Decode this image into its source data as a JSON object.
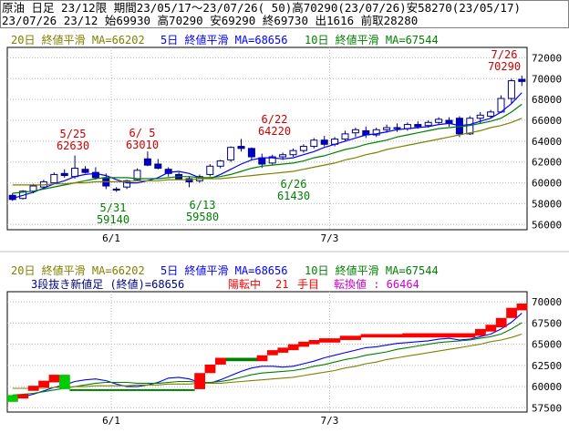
{
  "header": {
    "line1": "原油 日足 23/12限 期間23/05/17～23/07/26( 50)高70290(23/07/26)安58270(23/05/17)",
    "line2": "23/07/26 23/12 始69930 高70290 安69290 終69730 出1616 前取28280"
  },
  "upper": {
    "legend": {
      "ma20": "20日 終値平滑 MA=66202",
      "ma5": "5日 終値平滑 MA=68656",
      "ma10": "10日 終値平滑 MA=67544"
    },
    "annotations": [
      {
        "date": "5/25",
        "price": "62630",
        "kind": "high"
      },
      {
        "date": "6/ 5",
        "price": "63010",
        "kind": "high"
      },
      {
        "date": "6/22",
        "price": "64220",
        "kind": "high"
      },
      {
        "date": "7/26",
        "price": "70290",
        "kind": "high"
      },
      {
        "date": "5/31",
        "price": "59140",
        "kind": "low"
      },
      {
        "date": "6/13",
        "price": "59580",
        "kind": "low"
      },
      {
        "date": "6/26",
        "price": "61430",
        "kind": "low"
      }
    ]
  },
  "lower": {
    "legend": {
      "ma20": "20日 終値平滑 MA=66202",
      "ma5": "5日 終値平滑 MA=68656",
      "ma10": "10日 終値平滑 MA=67544"
    },
    "status": {
      "prefix": "3段抜き新値足 (終値)=68656",
      "state": "陽転中",
      "count": "21",
      "count_unit": "手目",
      "reversal": "転換値 : 66464"
    }
  },
  "colors": {
    "up_body": "#ffffff",
    "down_body": "#0000cc",
    "candle_outline": "#000080",
    "ma5": "#0000ff",
    "ma10": "#008000",
    "ma20": "#808000",
    "high_label": "#cc0000",
    "low_label": "#008000",
    "brick_up": "#ff0000",
    "brick_down": "#00cc00",
    "brick_flat": "#008000",
    "status_red": "#ff0000",
    "status_magenta": "#cc00cc",
    "header_line2": "#000080"
  },
  "chart_data": [
    {
      "type": "candlestick",
      "title": "原油 日足 23/12限",
      "y_ticks": [
        56000,
        58000,
        60000,
        62000,
        64000,
        66000,
        68000,
        70000,
        72000
      ],
      "ylim": [
        55500,
        73000
      ],
      "x_ticks": [
        {
          "label": "6/1",
          "index": 10
        },
        {
          "label": "7/3",
          "index": 31
        }
      ],
      "grid": true,
      "candles": [
        {
          "o": 58800,
          "h": 59000,
          "l": 58270,
          "c": 58400
        },
        {
          "o": 58500,
          "h": 59300,
          "l": 58400,
          "c": 59200
        },
        {
          "o": 59200,
          "h": 59900,
          "l": 59000,
          "c": 59700
        },
        {
          "o": 59600,
          "h": 60300,
          "l": 59400,
          "c": 60100
        },
        {
          "o": 60000,
          "h": 61000,
          "l": 59900,
          "c": 60800
        },
        {
          "o": 60900,
          "h": 61300,
          "l": 60500,
          "c": 60700
        },
        {
          "o": 60600,
          "h": 62630,
          "l": 60400,
          "c": 61400
        },
        {
          "o": 61300,
          "h": 61600,
          "l": 60900,
          "c": 61000
        },
        {
          "o": 61000,
          "h": 61500,
          "l": 60300,
          "c": 60500
        },
        {
          "o": 60500,
          "h": 60900,
          "l": 59400,
          "c": 59700
        },
        {
          "o": 59400,
          "h": 59600,
          "l": 59140,
          "c": 59300
        },
        {
          "o": 59600,
          "h": 60300,
          "l": 59400,
          "c": 60200
        },
        {
          "o": 60300,
          "h": 61400,
          "l": 60200,
          "c": 61200
        },
        {
          "o": 62300,
          "h": 63010,
          "l": 61600,
          "c": 61700
        },
        {
          "o": 61800,
          "h": 62300,
          "l": 61300,
          "c": 61400
        },
        {
          "o": 61300,
          "h": 61500,
          "l": 60600,
          "c": 60900
        },
        {
          "o": 60800,
          "h": 61000,
          "l": 60300,
          "c": 60400
        },
        {
          "o": 60400,
          "h": 60600,
          "l": 59580,
          "c": 60100
        },
        {
          "o": 60200,
          "h": 60800,
          "l": 60000,
          "c": 60600
        },
        {
          "o": 60800,
          "h": 61800,
          "l": 60600,
          "c": 61600
        },
        {
          "o": 61600,
          "h": 62200,
          "l": 61400,
          "c": 62100
        },
        {
          "o": 62200,
          "h": 63500,
          "l": 62000,
          "c": 63400
        },
        {
          "o": 63500,
          "h": 64220,
          "l": 63000,
          "c": 63300
        },
        {
          "o": 63300,
          "h": 63400,
          "l": 62200,
          "c": 62500
        },
        {
          "o": 62400,
          "h": 62800,
          "l": 61430,
          "c": 61800
        },
        {
          "o": 61900,
          "h": 62700,
          "l": 61700,
          "c": 62500
        },
        {
          "o": 62500,
          "h": 62900,
          "l": 62200,
          "c": 62700
        },
        {
          "o": 62700,
          "h": 63300,
          "l": 62500,
          "c": 63100
        },
        {
          "o": 63100,
          "h": 63700,
          "l": 62900,
          "c": 63500
        },
        {
          "o": 63500,
          "h": 64300,
          "l": 63300,
          "c": 64100
        },
        {
          "o": 64100,
          "h": 64500,
          "l": 63500,
          "c": 63700
        },
        {
          "o": 63700,
          "h": 64400,
          "l": 63500,
          "c": 64200
        },
        {
          "o": 64200,
          "h": 65000,
          "l": 64000,
          "c": 64700
        },
        {
          "o": 64800,
          "h": 65300,
          "l": 64400,
          "c": 65100
        },
        {
          "o": 65000,
          "h": 65400,
          "l": 64300,
          "c": 64600
        },
        {
          "o": 64600,
          "h": 65300,
          "l": 64400,
          "c": 65100
        },
        {
          "o": 65100,
          "h": 65600,
          "l": 64800,
          "c": 65300
        },
        {
          "o": 65300,
          "h": 65700,
          "l": 64900,
          "c": 65200
        },
        {
          "o": 65200,
          "h": 65800,
          "l": 65000,
          "c": 65600
        },
        {
          "o": 65600,
          "h": 65900,
          "l": 65200,
          "c": 65400
        },
        {
          "o": 65500,
          "h": 66000,
          "l": 65300,
          "c": 65800
        },
        {
          "o": 65800,
          "h": 66300,
          "l": 65600,
          "c": 66100
        },
        {
          "o": 66000,
          "h": 66300,
          "l": 65400,
          "c": 65700
        },
        {
          "o": 66200,
          "h": 66400,
          "l": 64400,
          "c": 64700
        },
        {
          "o": 64700,
          "h": 66400,
          "l": 64600,
          "c": 66200
        },
        {
          "o": 66200,
          "h": 66800,
          "l": 65700,
          "c": 66500
        },
        {
          "o": 66400,
          "h": 67000,
          "l": 66200,
          "c": 66800
        },
        {
          "o": 66800,
          "h": 68400,
          "l": 66700,
          "c": 68100
        },
        {
          "o": 68100,
          "h": 70000,
          "l": 67600,
          "c": 69800
        },
        {
          "o": 69930,
          "h": 70290,
          "l": 69290,
          "c": 69730
        }
      ],
      "series": [
        {
          "name": "5日",
          "values": [
            58500,
            58800,
            59100,
            59500,
            59900,
            60200,
            60600,
            60800,
            60900,
            60700,
            60300,
            60000,
            60000,
            60200,
            60500,
            61000,
            61100,
            60900,
            60500,
            60400,
            60800,
            61300,
            61800,
            62200,
            62400,
            62400,
            62300,
            62400,
            62700,
            63000,
            63400,
            63700,
            64000,
            64300,
            64600,
            64700,
            64900,
            65100,
            65200,
            65300,
            65400,
            65600,
            65700,
            65500,
            65600,
            65900,
            66200,
            66800,
            67600,
            68656
          ]
        },
        {
          "name": "10日",
          "values": [
            59000,
            59100,
            59200,
            59400,
            59600,
            59800,
            60000,
            60200,
            60400,
            60500,
            60500,
            60500,
            60400,
            60400,
            60400,
            60500,
            60600,
            60600,
            60500,
            60500,
            60600,
            60800,
            61100,
            61400,
            61600,
            61700,
            61800,
            61900,
            62100,
            62400,
            62600,
            62900,
            63200,
            63400,
            63700,
            63900,
            64100,
            64400,
            64600,
            64800,
            65000,
            65200,
            65300,
            65400,
            65500,
            65700,
            65900,
            66200,
            66800,
            67544
          ]
        },
        {
          "name": "20日",
          "values": [
            59800,
            59800,
            59800,
            59800,
            59900,
            59900,
            60000,
            60000,
            60100,
            60100,
            60100,
            60100,
            60200,
            60200,
            60200,
            60300,
            60300,
            60300,
            60400,
            60400,
            60400,
            60500,
            60600,
            60700,
            60800,
            60900,
            61000,
            61100,
            61300,
            61500,
            61700,
            61900,
            62200,
            62400,
            62700,
            62900,
            63200,
            63400,
            63600,
            63800,
            64000,
            64200,
            64400,
            64600,
            64800,
            65000,
            65300,
            65500,
            65800,
            66202
          ]
        }
      ]
    },
    {
      "type": "bar",
      "title": "3段抜き新値足 (終値)",
      "y_ticks": [
        57500,
        60000,
        62500,
        65000,
        67500,
        70000
      ],
      "ylim": [
        57000,
        71200
      ],
      "x_ticks": [
        {
          "label": "6/1",
          "index": 10
        },
        {
          "label": "7/3",
          "index": 31
        }
      ],
      "grid": true,
      "bricks": [
        {
          "from": 59000,
          "to": 58200,
          "dir": "down"
        },
        {
          "from": 58600,
          "to": 59100,
          "dir": "up"
        },
        {
          "from": 59500,
          "to": 60100,
          "dir": "up"
        },
        {
          "from": 59900,
          "to": 60700,
          "dir": "up"
        },
        {
          "from": 60500,
          "to": 61400,
          "dir": "up"
        },
        {
          "from": 61400,
          "to": 59700,
          "dir": "down"
        },
        {
          "from": 59700,
          "to": 59600,
          "dir": "flat"
        },
        {
          "from": 59700,
          "to": 59600,
          "dir": "flat"
        },
        {
          "from": 59700,
          "to": 59600,
          "dir": "flat"
        },
        {
          "from": 59700,
          "to": 59600,
          "dir": "flat"
        },
        {
          "from": 59700,
          "to": 59600,
          "dir": "flat"
        },
        {
          "from": 59700,
          "to": 59600,
          "dir": "flat"
        },
        {
          "from": 59700,
          "to": 59600,
          "dir": "flat"
        },
        {
          "from": 59700,
          "to": 59600,
          "dir": "flat"
        },
        {
          "from": 59700,
          "to": 59600,
          "dir": "flat"
        },
        {
          "from": 59700,
          "to": 59600,
          "dir": "flat"
        },
        {
          "from": 59700,
          "to": 59600,
          "dir": "flat"
        },
        {
          "from": 59700,
          "to": 59600,
          "dir": "flat"
        },
        {
          "from": 59700,
          "to": 61600,
          "dir": "up"
        },
        {
          "from": 61600,
          "to": 62600,
          "dir": "up"
        },
        {
          "from": 62600,
          "to": 63400,
          "dir": "up"
        },
        {
          "from": 63400,
          "to": 63000,
          "dir": "flat"
        },
        {
          "from": 63400,
          "to": 63000,
          "dir": "flat"
        },
        {
          "from": 63400,
          "to": 63000,
          "dir": "flat"
        },
        {
          "from": 63000,
          "to": 63700,
          "dir": "up"
        },
        {
          "from": 63700,
          "to": 64300,
          "dir": "up"
        },
        {
          "from": 64000,
          "to": 64600,
          "dir": "up"
        },
        {
          "from": 64300,
          "to": 65000,
          "dir": "up"
        },
        {
          "from": 64700,
          "to": 65300,
          "dir": "up"
        },
        {
          "from": 65000,
          "to": 65500,
          "dir": "up"
        },
        {
          "from": 65200,
          "to": 65700,
          "dir": "up"
        },
        {
          "from": 65200,
          "to": 65700,
          "dir": "up"
        },
        {
          "from": 65500,
          "to": 66000,
          "dir": "up"
        },
        {
          "from": 65500,
          "to": 66000,
          "dir": "up"
        },
        {
          "from": 65800,
          "to": 66200,
          "dir": "up"
        },
        {
          "from": 65800,
          "to": 66200,
          "dir": "up"
        },
        {
          "from": 65800,
          "to": 66200,
          "dir": "up"
        },
        {
          "from": 65800,
          "to": 66200,
          "dir": "up"
        },
        {
          "from": 65800,
          "to": 66300,
          "dir": "up"
        },
        {
          "from": 65800,
          "to": 66300,
          "dir": "up"
        },
        {
          "from": 65800,
          "to": 66300,
          "dir": "up"
        },
        {
          "from": 65800,
          "to": 66300,
          "dir": "up"
        },
        {
          "from": 65800,
          "to": 66300,
          "dir": "up"
        },
        {
          "from": 65800,
          "to": 66300,
          "dir": "up"
        },
        {
          "from": 65800,
          "to": 66300,
          "dir": "up"
        },
        {
          "from": 66000,
          "to": 66800,
          "dir": "up"
        },
        {
          "from": 66500,
          "to": 67300,
          "dir": "up"
        },
        {
          "from": 67000,
          "to": 68100,
          "dir": "up"
        },
        {
          "from": 68100,
          "to": 69300,
          "dir": "up"
        },
        {
          "from": 69000,
          "to": 69800,
          "dir": "up"
        }
      ],
      "series": [
        {
          "name": "5日",
          "values": [
            58500,
            58800,
            59100,
            59500,
            59900,
            60200,
            60600,
            60800,
            60900,
            60700,
            60300,
            60000,
            60000,
            60200,
            60500,
            61000,
            61100,
            60900,
            60500,
            60400,
            60800,
            61300,
            61800,
            62200,
            62400,
            62400,
            62300,
            62400,
            62700,
            63000,
            63400,
            63700,
            64000,
            64300,
            64600,
            64700,
            64900,
            65100,
            65200,
            65300,
            65400,
            65600,
            65700,
            65500,
            65600,
            65900,
            66200,
            66800,
            67600,
            68656
          ]
        },
        {
          "name": "10日",
          "values": [
            59000,
            59100,
            59200,
            59400,
            59600,
            59800,
            60000,
            60200,
            60400,
            60500,
            60500,
            60500,
            60400,
            60400,
            60400,
            60500,
            60600,
            60600,
            60500,
            60500,
            60600,
            60800,
            61100,
            61400,
            61600,
            61700,
            61800,
            61900,
            62100,
            62400,
            62600,
            62900,
            63200,
            63400,
            63700,
            63900,
            64100,
            64400,
            64600,
            64800,
            65000,
            65200,
            65300,
            65400,
            65500,
            65700,
            65900,
            66200,
            66800,
            67544
          ]
        },
        {
          "name": "20日",
          "values": [
            59800,
            59800,
            59800,
            59800,
            59900,
            59900,
            60000,
            60000,
            60100,
            60100,
            60100,
            60100,
            60200,
            60200,
            60200,
            60300,
            60300,
            60300,
            60400,
            60400,
            60400,
            60500,
            60600,
            60700,
            60800,
            60900,
            61000,
            61100,
            61300,
            61500,
            61700,
            61900,
            62200,
            62400,
            62700,
            62900,
            63200,
            63400,
            63600,
            63800,
            64000,
            64200,
            64400,
            64600,
            64800,
            65000,
            65300,
            65500,
            65800,
            66202
          ]
        }
      ]
    }
  ]
}
